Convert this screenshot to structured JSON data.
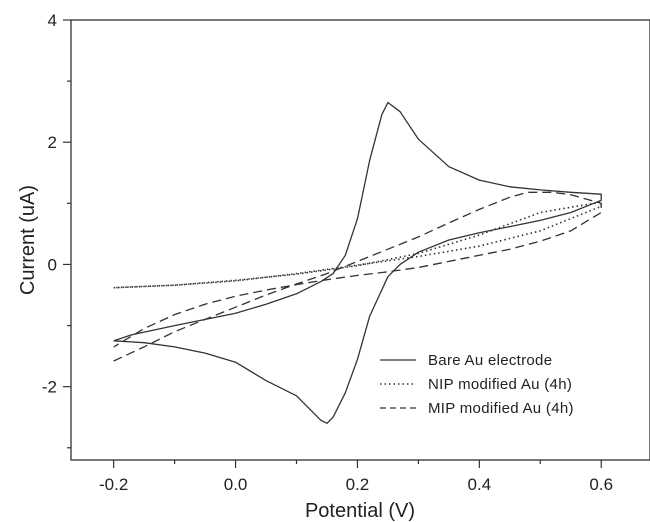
{
  "chart_data": {
    "type": "line",
    "title": "",
    "xlabel": "Potential (V)",
    "ylabel": "Current (uA)",
    "xlim": [
      -0.27,
      0.68
    ],
    "ylim": [
      -3.2,
      4
    ],
    "x_ticks": [
      -0.2,
      0.0,
      0.2,
      0.4,
      0.6
    ],
    "x_tick_labels": [
      "-0.2",
      "0.0",
      "0.2",
      "0.4",
      "0.6"
    ],
    "y_ticks": [
      -2,
      0,
      2,
      4
    ],
    "y_tick_labels": [
      "-2",
      "0",
      "2",
      "4"
    ],
    "grid": false,
    "legend_position": "bottom-right",
    "series": [
      {
        "name": "Bare Au electrode",
        "style": "solid",
        "color": "#333333",
        "x": [
          -0.2,
          -0.17,
          -0.1,
          0.0,
          0.05,
          0.1,
          0.14,
          0.16,
          0.18,
          0.2,
          0.22,
          0.24,
          0.25,
          0.27,
          0.3,
          0.35,
          0.4,
          0.45,
          0.5,
          0.55,
          0.6,
          0.6,
          0.55,
          0.5,
          0.45,
          0.4,
          0.35,
          0.3,
          0.27,
          0.25,
          0.22,
          0.2,
          0.18,
          0.16,
          0.15,
          0.14,
          0.12,
          0.1,
          0.05,
          0.0,
          -0.05,
          -0.1,
          -0.15,
          -0.2
        ],
        "y": [
          -1.25,
          -1.15,
          -1.0,
          -0.8,
          -0.65,
          -0.48,
          -0.28,
          -0.15,
          0.15,
          0.75,
          1.7,
          2.45,
          2.65,
          2.5,
          2.05,
          1.6,
          1.38,
          1.27,
          1.22,
          1.18,
          1.15,
          1.05,
          0.85,
          0.72,
          0.62,
          0.52,
          0.4,
          0.2,
          0.0,
          -0.2,
          -0.85,
          -1.55,
          -2.1,
          -2.5,
          -2.6,
          -2.55,
          -2.35,
          -2.15,
          -1.9,
          -1.6,
          -1.45,
          -1.35,
          -1.28,
          -1.25
        ]
      },
      {
        "name": "NIP modified Au (4h)",
        "style": "dotted",
        "color": "#333333",
        "x": [
          -0.2,
          -0.1,
          0.0,
          0.1,
          0.2,
          0.3,
          0.4,
          0.5,
          0.6,
          0.6,
          0.5,
          0.4,
          0.3,
          0.2,
          0.1,
          0.0,
          -0.1,
          -0.2
        ],
        "y": [
          -0.38,
          -0.34,
          -0.26,
          -0.16,
          -0.02,
          0.18,
          0.48,
          0.85,
          1.02,
          0.95,
          0.55,
          0.3,
          0.13,
          -0.01,
          -0.15,
          -0.27,
          -0.34,
          -0.38
        ]
      },
      {
        "name": "MIP modified Au (4h)",
        "style": "dashed",
        "color": "#333333",
        "x": [
          -0.2,
          -0.15,
          -0.1,
          -0.05,
          0.0,
          0.05,
          0.1,
          0.15,
          0.2,
          0.25,
          0.3,
          0.35,
          0.4,
          0.45,
          0.48,
          0.52,
          0.55,
          0.6,
          0.6,
          0.55,
          0.5,
          0.45,
          0.4,
          0.35,
          0.3,
          0.25,
          0.2,
          0.15,
          0.1,
          0.05,
          0.0,
          -0.05,
          -0.1,
          -0.15,
          -0.2
        ],
        "y": [
          -1.58,
          -1.35,
          -1.1,
          -0.9,
          -0.7,
          -0.5,
          -0.32,
          -0.15,
          0.05,
          0.25,
          0.45,
          0.68,
          0.9,
          1.1,
          1.18,
          1.18,
          1.14,
          1.0,
          0.85,
          0.55,
          0.38,
          0.25,
          0.15,
          0.05,
          -0.05,
          -0.12,
          -0.18,
          -0.25,
          -0.33,
          -0.42,
          -0.52,
          -0.65,
          -0.82,
          -1.05,
          -1.35
        ]
      }
    ]
  }
}
